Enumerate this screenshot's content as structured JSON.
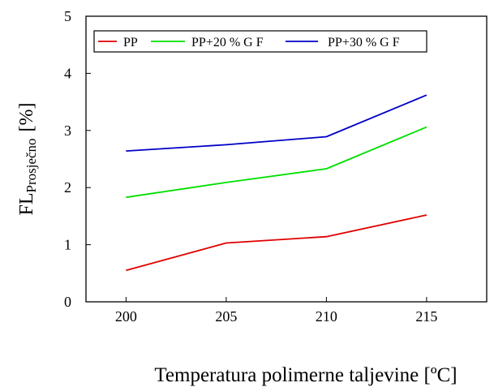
{
  "chart_data": {
    "type": "line",
    "x": [
      200,
      205,
      210,
      215
    ],
    "series": [
      {
        "name": "PP",
        "color": "#e00000",
        "values": [
          0.55,
          1.03,
          1.14,
          1.52
        ]
      },
      {
        "name": "PP+20 % G F",
        "color": "#00e000",
        "values": [
          1.83,
          2.09,
          2.33,
          3.06
        ]
      },
      {
        "name": "PP+30 % G F",
        "color": "#0000c8",
        "values": [
          2.64,
          2.75,
          2.89,
          3.62
        ]
      }
    ],
    "xlim": [
      198,
      218
    ],
    "ylim": [
      0,
      5
    ],
    "xticks": [
      "200",
      "205",
      "210",
      "215"
    ],
    "yticks": [
      "0",
      "1",
      "2",
      "3",
      "4",
      "5"
    ],
    "ylabel_main": "FL",
    "ylabel_sub": "Prosječno",
    "ylabel_unit": "[%]",
    "xlabel": "Temperatura polimerne taljevine [ºC]",
    "grid": false,
    "legend": "top"
  }
}
